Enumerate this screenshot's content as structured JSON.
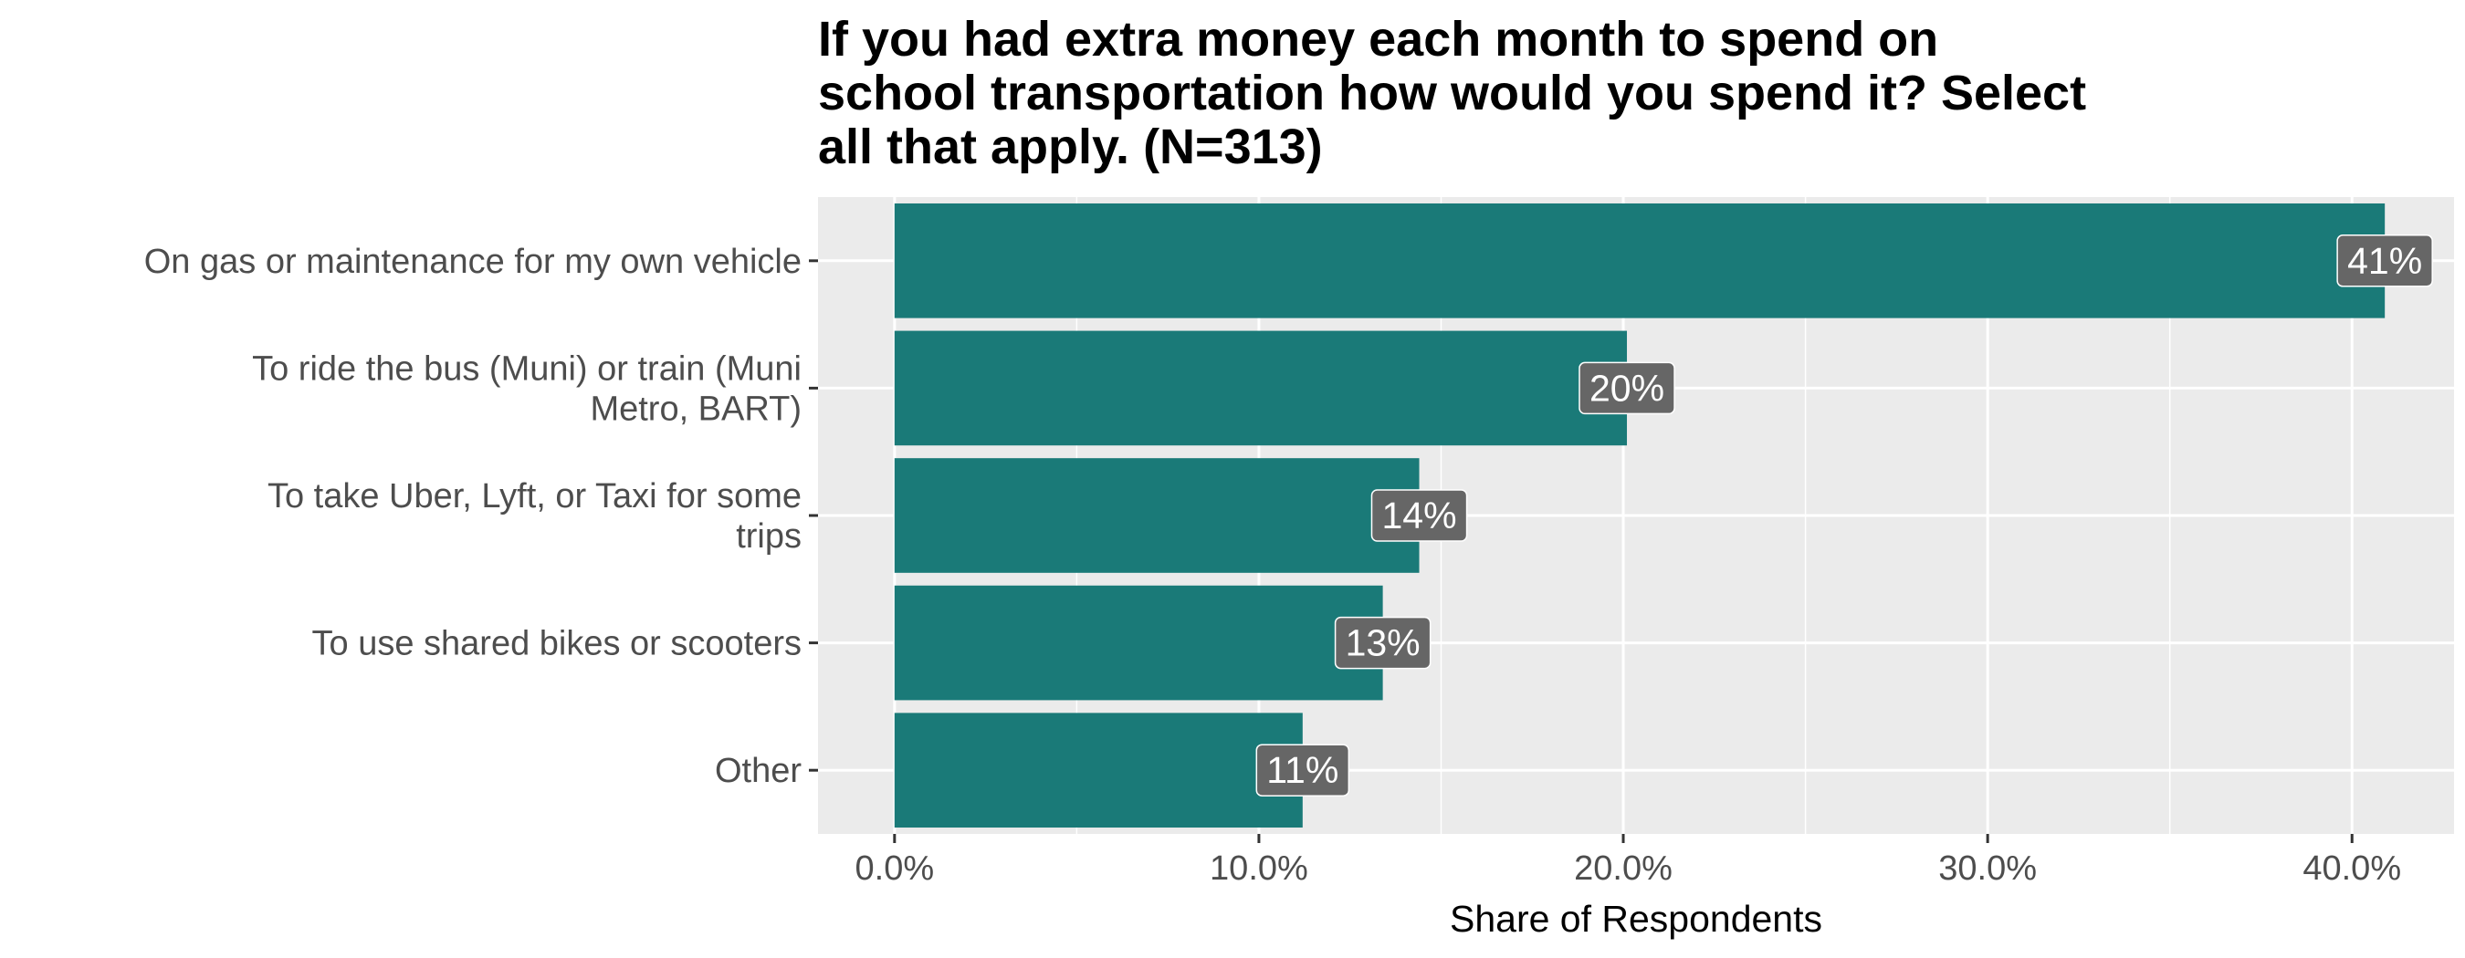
{
  "chart_data": {
    "type": "bar",
    "orientation": "horizontal",
    "title": "If you had extra money each month to spend on school transportation how would you spend it? Select all that apply. (N=313)",
    "xlabel": "Share of Respondents",
    "ylabel": "",
    "categories": [
      "On gas or maintenance for my own vehicle",
      "To ride the bus (Muni) or train (Muni Metro, BART)",
      "To take Uber, Lyft, or Taxi for some trips",
      "To use shared bikes or scooters",
      "Other"
    ],
    "category_lines": [
      [
        "On gas or maintenance for my own vehicle"
      ],
      [
        "To ride the bus (Muni) or train (Muni",
        "Metro, BART)"
      ],
      [
        "To take Uber, Lyft, or Taxi for some",
        "trips"
      ],
      [
        "To use shared bikes or scooters"
      ],
      [
        "Other"
      ]
    ],
    "values": [
      0.409,
      0.201,
      0.144,
      0.134,
      0.112
    ],
    "value_labels": [
      "41%",
      "20%",
      "14%",
      "13%",
      "11%"
    ],
    "xlim": [
      -0.021,
      0.428
    ],
    "xticks": [
      0,
      0.1,
      0.2,
      0.3,
      0.4
    ],
    "xtick_labels": [
      "0.0%",
      "10.0%",
      "20.0%",
      "30.0%",
      "40.0%"
    ],
    "grid": true,
    "legend": "none",
    "colors": {
      "bar": "#1a7a78",
      "panel": "#ebebeb",
      "grid": "#ffffff",
      "label_box": "#666666",
      "label_text": "#ffffff"
    }
  }
}
